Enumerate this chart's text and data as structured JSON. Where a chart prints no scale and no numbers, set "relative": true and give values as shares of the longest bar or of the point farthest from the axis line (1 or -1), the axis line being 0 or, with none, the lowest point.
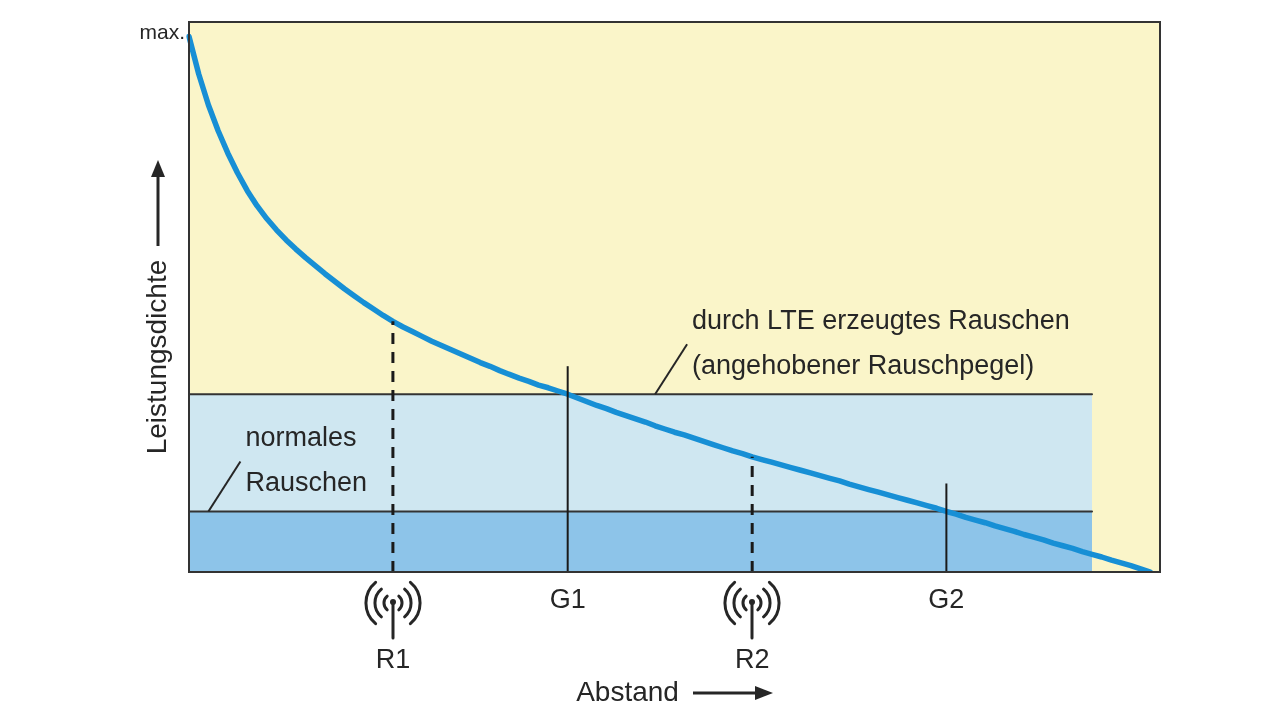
{
  "chart_data": {
    "type": "line",
    "relative": true,
    "xlabel": "Abstand",
    "ylabel": "Leistungsdichte",
    "categories": [
      null,
      null,
      null,
      null,
      null,
      null,
      null,
      null,
      null,
      null,
      null,
      null,
      null,
      null,
      null,
      null,
      null,
      null,
      null,
      null,
      null,
      "R1",
      null,
      null,
      null,
      null,
      null,
      null,
      null,
      null,
      null,
      null,
      null,
      null,
      null,
      null,
      null,
      null,
      null,
      "G1",
      null,
      null,
      null,
      null,
      null,
      null,
      null,
      null,
      null,
      null,
      null,
      null,
      null,
      null,
      null,
      null,
      null,
      null,
      "R2",
      null,
      null,
      null,
      null,
      null,
      null,
      null,
      null,
      null,
      null,
      null,
      null,
      null,
      null,
      null,
      null,
      null,
      null,
      null,
      "G2",
      null,
      null,
      null,
      null,
      null,
      null,
      null,
      null,
      null,
      null,
      null,
      null,
      null,
      null,
      null,
      null,
      null,
      null,
      null,
      null,
      null,
      null
    ],
    "series": [
      {
        "type": "area",
        "name": "durch LTE erzeugtes Rauschen (angehobener Rauschpegel)",
        "color": "#cfe7f1",
        "values": [
          0.332,
          0.332,
          0.332,
          0.332,
          0.332,
          0.332,
          0.332,
          0.332,
          0.332,
          0.332,
          0.332,
          0.332,
          0.332,
          0.332,
          0.332,
          0.332,
          0.332,
          0.332,
          0.332,
          0.332,
          0.332,
          0.332,
          0.332,
          0.332,
          0.332,
          0.332,
          0.332,
          0.332,
          0.332,
          0.332,
          0.332,
          0.332,
          0.332,
          0.332,
          0.332,
          0.332,
          0.332,
          0.332,
          0.332,
          0.332,
          0.332,
          0.332,
          0.332,
          0.332,
          0.332,
          0.332,
          0.332,
          0.332,
          0.332,
          0.332,
          0.332,
          0.332,
          0.332,
          0.332,
          0.332,
          0.332,
          0.332,
          0.332,
          0.332,
          0.332,
          0.332,
          0.332,
          0.332,
          0.332,
          0.332,
          0.332,
          0.332,
          0.332,
          0.332,
          0.332,
          0.332,
          0.332,
          0.332,
          0.332,
          0.332,
          0.332,
          0.332,
          0.332,
          0.332,
          0.332,
          0.332,
          0.332,
          0.332,
          0.332,
          0.332,
          0.332,
          0.332,
          0.332,
          0.332,
          0.332,
          0.332,
          0.332,
          0.332,
          0.332,
          null,
          null,
          null,
          null,
          null,
          null,
          null
        ]
      },
      {
        "type": "area",
        "name": "normales Rauschen",
        "color": "#8dc4e9",
        "values": [
          0.113,
          0.113,
          0.113,
          0.113,
          0.113,
          0.113,
          0.113,
          0.113,
          0.113,
          0.113,
          0.113,
          0.113,
          0.113,
          0.113,
          0.113,
          0.113,
          0.113,
          0.113,
          0.113,
          0.113,
          0.113,
          0.113,
          0.113,
          0.113,
          0.113,
          0.113,
          0.113,
          0.113,
          0.113,
          0.113,
          0.113,
          0.113,
          0.113,
          0.113,
          0.113,
          0.113,
          0.113,
          0.113,
          0.113,
          0.113,
          0.113,
          0.113,
          0.113,
          0.113,
          0.113,
          0.113,
          0.113,
          0.113,
          0.113,
          0.113,
          0.113,
          0.113,
          0.113,
          0.113,
          0.113,
          0.113,
          0.113,
          0.113,
          0.113,
          0.113,
          0.113,
          0.113,
          0.113,
          0.113,
          0.113,
          0.113,
          0.113,
          0.113,
          0.113,
          0.113,
          0.113,
          0.113,
          0.113,
          0.113,
          0.113,
          0.113,
          0.113,
          0.113,
          0.113,
          0.113,
          0.113,
          0.113,
          0.113,
          0.113,
          0.113,
          0.113,
          0.113,
          0.113,
          0.113,
          0.113,
          0.113,
          0.113,
          0.113,
          0.113,
          null,
          null,
          null,
          null,
          null,
          null,
          null
        ]
      },
      {
        "type": "line",
        "color": "#178fd5",
        "values": [
          1,
          0.93,
          0.872,
          0.824,
          0.782,
          0.745,
          0.712,
          0.684,
          0.66,
          0.639,
          0.62,
          0.603,
          0.587,
          0.572,
          0.557,
          0.543,
          0.529,
          0.516,
          0.503,
          0.491,
          0.479,
          0.468,
          0.458,
          0.449,
          0.44,
          0.431,
          0.423,
          0.415,
          0.407,
          0.399,
          0.391,
          0.384,
          0.376,
          0.369,
          0.362,
          0.356,
          0.349,
          0.344,
          0.338,
          0.332,
          0.325,
          0.318,
          0.311,
          0.305,
          0.298,
          0.292,
          0.286,
          0.28,
          0.273,
          0.267,
          0.261,
          0.256,
          0.25,
          0.244,
          0.238,
          0.232,
          0.226,
          0.221,
          0.215,
          0.21,
          0.205,
          0.2,
          0.195,
          0.19,
          0.185,
          0.18,
          0.175,
          0.17,
          0.164,
          0.159,
          0.154,
          0.149,
          0.144,
          0.139,
          0.134,
          0.129,
          0.124,
          0.119,
          0.113,
          0.108,
          0.102,
          0.097,
          0.092,
          0.086,
          0.081,
          0.076,
          0.07,
          0.065,
          0.06,
          0.054,
          0.049,
          0.044,
          0.038,
          0.033,
          0.028,
          0.022,
          0.017,
          0.012,
          0.006,
          0,
          null
        ]
      }
    ],
    "ref_lines": [
      {
        "axis": "x",
        "value": "R1",
        "line_style": "dashed",
        "color": "#1a1a1a"
      },
      {
        "axis": "x",
        "value": "G1",
        "line_style": "solid",
        "color": "#1a1a1a"
      },
      {
        "axis": "x",
        "value": "R2",
        "line_style": "dashed",
        "color": "#1a1a1a"
      },
      {
        "axis": "x",
        "value": "G2",
        "line_style": "solid",
        "color": "#1a1a1a"
      }
    ],
    "annotations": [
      "max."
    ],
    "legend": false,
    "grid": false,
    "marker": "none"
  }
}
